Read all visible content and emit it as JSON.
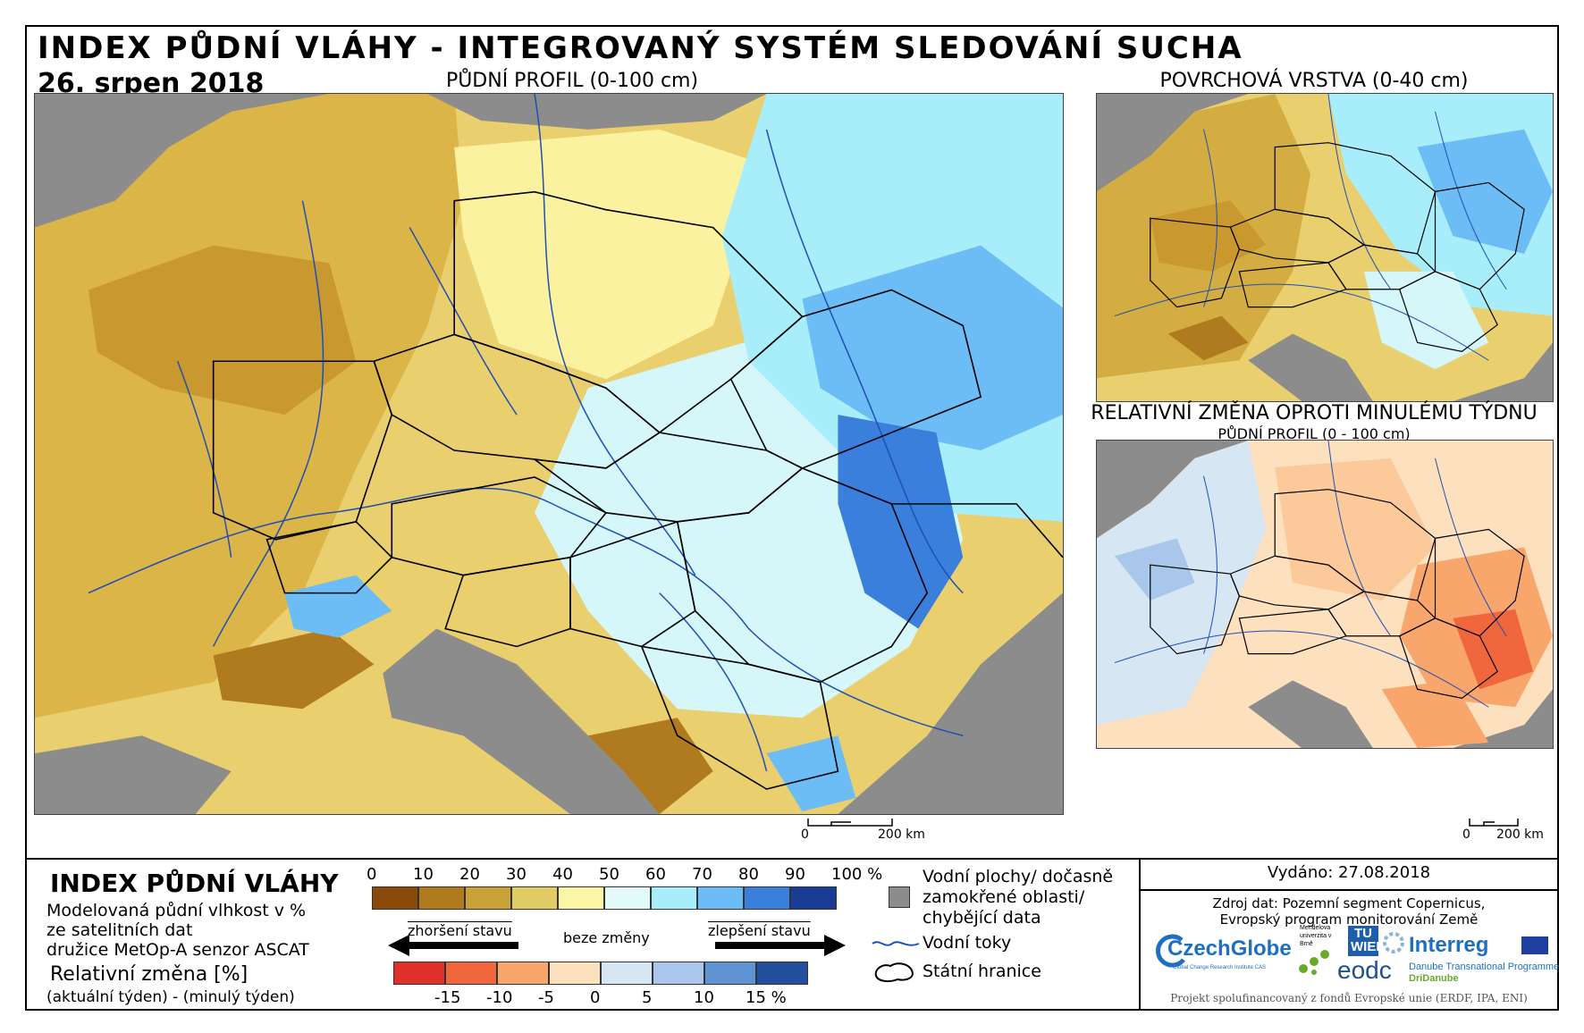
{
  "header": {
    "title": "INDEX PŮDNÍ VLÁHY - INTEGROVANÝ SYSTÉM SLEDOVÁNÍ SUCHA",
    "date": "26. srpen 2018"
  },
  "panels": {
    "main_title": "PŮDNÍ PROFIL (0-100 cm)",
    "surface_title": "POVRCHOVÁ VRSTVA (0-40 cm)",
    "change_title": "RELATIVNÍ ZMĚNA OPROTI MINULÉMU TÝDNU",
    "change_subtitle": "PŮDNÍ PROFIL (0 - 100 cm)"
  },
  "scalebar": {
    "zero": "0",
    "label": "200 km"
  },
  "legend": {
    "index_title": "INDEX PŮDNÍ VLÁHY",
    "index_desc_1": "Modelovaná půdní vlhkost v %",
    "index_desc_2": "ze satelitních dat",
    "index_desc_3": "družice MetOp-A senzor ASCAT",
    "change_title": "Relativní změna [%]",
    "change_desc": "(aktuální týden) - (minulý týden)",
    "index_ticks": [
      "0",
      "10",
      "20",
      "30",
      "40",
      "50",
      "60",
      "70",
      "80",
      "90",
      "100 %"
    ],
    "index_colors": [
      "#8b4a0c",
      "#b07a1e",
      "#c9a238",
      "#e1cc63",
      "#fbf6a6",
      "#e2fafa",
      "#a8eefa",
      "#6cbcf5",
      "#3a7fdb",
      "#1b3c94"
    ],
    "worse_label": "zhoršení stavu",
    "nochange_label": "beze změny",
    "better_label": "zlepšení stavu",
    "change_ticks": [
      "-15",
      "-10",
      "-5",
      "0",
      "5",
      "10",
      "15 %"
    ],
    "change_colors": [
      "#e0302b",
      "#f0673d",
      "#f9a66d",
      "#fde0be",
      "#d6e6f3",
      "#a9c7ea",
      "#5f93d4",
      "#234f9e"
    ],
    "water_label_1": "Vodní plochy/ dočasně",
    "water_label_2": "zamokřené oblasti/",
    "water_label_3": "chybějící data",
    "rivers_label": "Vodní toky",
    "borders_label": "Státní hranice"
  },
  "publication": {
    "issued": "Vydáno: 27.08.2018",
    "source_1": "Zdroj dat: Pozemní segment Copernicus,",
    "source_2": "Evropský program monitorování Země",
    "funding": "Projekt spolufinancovaný z fondů Evropské unie (ERDF, IPA, ENI)"
  },
  "logos": {
    "czechglobe": "CzechGlobe",
    "czechglobe_sub": "Global Change Research Institute CAS",
    "mendel": "Mendelova univerzita v Brně",
    "tu": "TU WIEN",
    "eodc": "eodc",
    "interreg": "Interreg",
    "interreg_sub_1": "Danube Transnational Programme",
    "interreg_sub_2": "DriDanube"
  },
  "colors": {
    "no_data": "#8c8c8c",
    "river": "#1f4fb4",
    "border": "#000000"
  }
}
